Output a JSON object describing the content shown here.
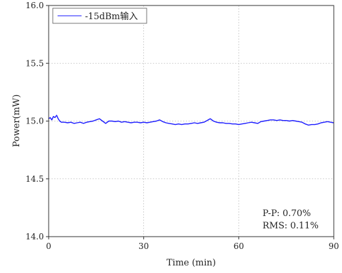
{
  "chart_data": {
    "type": "line",
    "title": "",
    "xlabel": "Time (min)",
    "ylabel": "Power(mW)",
    "xlim": [
      0,
      90
    ],
    "ylim": [
      14.0,
      16.0
    ],
    "xticks": [
      0,
      30,
      60,
      90
    ],
    "xtick_labels": [
      "0",
      "30",
      "60",
      "90"
    ],
    "yticks": [
      14.0,
      14.5,
      15.0,
      15.5,
      16.0
    ],
    "ytick_labels": [
      "14.0",
      "14.5",
      "15.0",
      "15.5",
      "16.0"
    ],
    "grid": true,
    "legend_position": "top-left",
    "annotations": [
      "P-P: 0.70%",
      "RMS: 0.11%"
    ],
    "series": [
      {
        "name": "-15dBm输入",
        "color": "#1a1aff",
        "x": [
          0,
          0.5,
          1,
          1.5,
          2,
          2.5,
          3,
          3.5,
          4,
          5,
          6,
          7,
          8,
          9,
          10,
          11,
          12,
          13,
          14,
          15,
          16,
          17,
          18,
          19,
          20,
          21,
          22,
          23,
          24,
          25,
          26,
          27,
          28,
          29,
          30,
          31,
          32,
          33,
          34,
          35,
          36,
          37,
          38,
          39,
          40,
          41,
          42,
          43,
          44,
          45,
          46,
          47,
          48,
          49,
          50,
          51,
          52,
          53,
          54,
          55,
          56,
          57,
          58,
          59,
          60,
          61,
          62,
          63,
          64,
          65,
          66,
          67,
          68,
          69,
          70,
          71,
          72,
          73,
          74,
          75,
          76,
          77,
          78,
          79,
          80,
          81,
          82,
          83,
          84,
          85,
          86,
          87,
          88,
          89,
          90
        ],
        "y": [
          15.02,
          15.03,
          15.01,
          15.04,
          15.03,
          15.05,
          15.02,
          15.0,
          14.99,
          14.99,
          14.985,
          14.99,
          14.98,
          14.985,
          14.99,
          14.98,
          14.99,
          14.995,
          15.0,
          15.01,
          15.02,
          15.0,
          14.98,
          15.0,
          15.0,
          14.995,
          15.0,
          14.99,
          14.995,
          14.99,
          14.985,
          14.99,
          14.99,
          14.985,
          14.99,
          14.985,
          14.99,
          14.995,
          15.0,
          15.01,
          14.995,
          14.985,
          14.98,
          14.975,
          14.97,
          14.975,
          14.97,
          14.975,
          14.975,
          14.98,
          14.985,
          14.98,
          14.985,
          14.99,
          15.005,
          15.02,
          15.0,
          14.99,
          14.985,
          14.985,
          14.98,
          14.98,
          14.975,
          14.975,
          14.97,
          14.975,
          14.98,
          14.985,
          14.99,
          14.985,
          14.98,
          14.995,
          15.0,
          15.005,
          15.01,
          15.01,
          15.005,
          15.01,
          15.005,
          15.005,
          15.0,
          15.005,
          15.0,
          14.995,
          14.99,
          14.975,
          14.965,
          14.97,
          14.97,
          14.975,
          14.985,
          14.99,
          14.995,
          14.99,
          14.985
        ]
      }
    ]
  }
}
